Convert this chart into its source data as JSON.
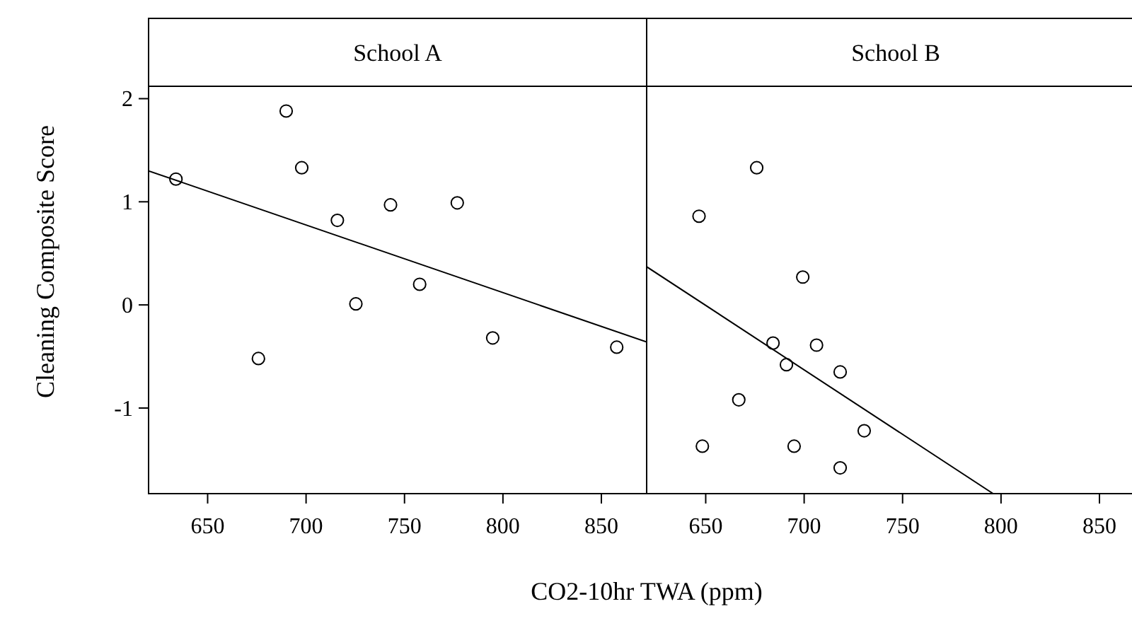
{
  "chart_data": [
    {
      "type": "scatter",
      "title": "School A",
      "xlabel": "CO2-10hr TWA (ppm)",
      "ylabel": "Cleaning Composite Score",
      "xlim": [
        620,
        873
      ],
      "ylim": [
        -1.83,
        2.12
      ],
      "xticks": [
        650,
        700,
        750,
        800,
        850
      ],
      "yticks": [
        -1,
        0,
        1,
        2
      ],
      "series": [
        {
          "marker": "circle",
          "color": "#000000",
          "x": [
            633.9,
            675.8,
            689.9,
            697.8,
            715.9,
            725.3,
            742.9,
            757.7,
            776.8,
            794.8,
            857.8
          ],
          "values": [
            1.22,
            -0.52,
            1.88,
            1.33,
            0.82,
            0.01,
            0.97,
            0.2,
            0.99,
            -0.32,
            -0.41
          ]
        },
        {
          "type": "line",
          "color": "#000000",
          "x": [
            620,
            873
          ],
          "values": [
            1.3,
            -0.36
          ]
        }
      ]
    },
    {
      "type": "scatter",
      "title": "School B",
      "xlim": [
        620,
        873
      ],
      "ylim": [
        -1.83,
        2.12
      ],
      "xticks": [
        650,
        700,
        750,
        800,
        850
      ],
      "tick_labels": "x",
      "series": [
        {
          "marker": "circle",
          "color": "#000000",
          "x": [
            646.6,
            675.9,
            699.3,
            684.2,
            706.3,
            691.0,
            718.3,
            666.8,
            730.5,
            648.3,
            694.9,
            718.3
          ],
          "values": [
            0.86,
            1.33,
            0.27,
            -0.37,
            -0.39,
            -0.58,
            -0.65,
            -0.92,
            -1.22,
            -1.37,
            -1.37,
            -1.58
          ]
        },
        {
          "type": "line",
          "color": "#000000",
          "x": [
            620,
            796
          ],
          "values": [
            0.37,
            -1.83
          ]
        }
      ]
    }
  ]
}
